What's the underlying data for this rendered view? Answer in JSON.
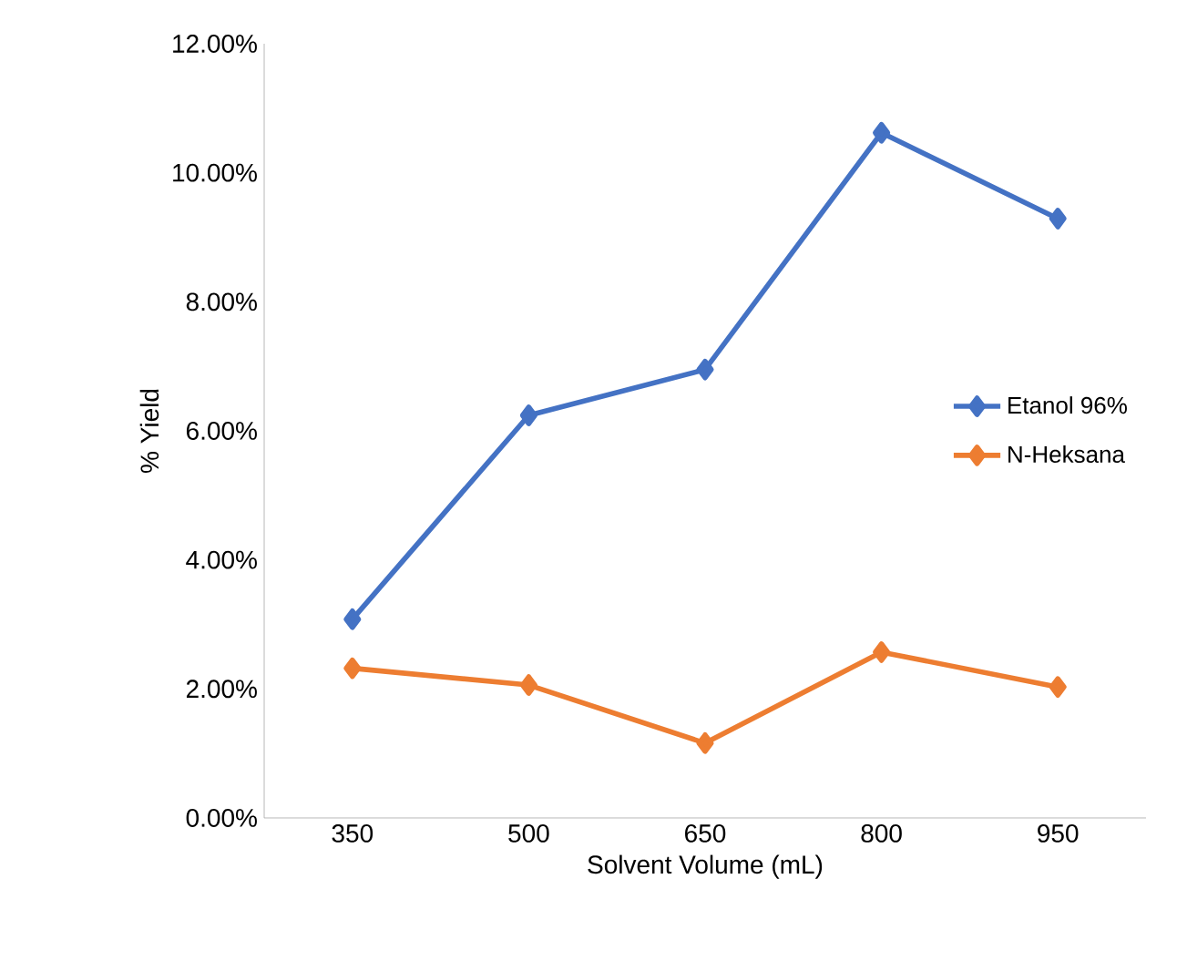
{
  "chart_data": {
    "type": "line",
    "xlabel": "Solvent Volume (mL)",
    "ylabel": "% Yield",
    "categories": [
      "350",
      "500",
      "650",
      "800",
      "950"
    ],
    "series": [
      {
        "name": "Etanol 96%",
        "color": "#4472c4",
        "values": [
          3.08,
          6.24,
          6.95,
          10.62,
          9.29
        ]
      },
      {
        "name": "N-Heksana",
        "color": "#ed7d31",
        "values": [
          2.32,
          2.06,
          1.16,
          2.57,
          2.03
        ]
      }
    ],
    "ylim": [
      0,
      12
    ],
    "yticks": [
      {
        "value": 0,
        "label": "0.00%"
      },
      {
        "value": 2,
        "label": "2.00%"
      },
      {
        "value": 4,
        "label": "4.00%"
      },
      {
        "value": 6,
        "label": "6.00%"
      },
      {
        "value": 8,
        "label": "8.00%"
      },
      {
        "value": 10,
        "label": "10.00%"
      },
      {
        "value": 12,
        "label": "12.00%"
      }
    ],
    "grid": false,
    "legend": "right",
    "marker": "diamond",
    "line_style": "solid"
  }
}
